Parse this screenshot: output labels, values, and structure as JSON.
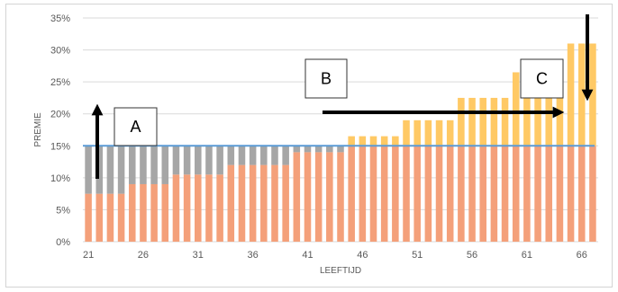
{
  "chart_data": {
    "type": "bar",
    "stacked": true,
    "xlabel": "LEEFTIJD",
    "ylabel": "PREMIE",
    "ylim": [
      0,
      35
    ],
    "y_ticks": [
      "0%",
      "5%",
      "10%",
      "15%",
      "20%",
      "25%",
      "30%",
      "35%"
    ],
    "x_tick_labels": [
      "21",
      "26",
      "31",
      "36",
      "41",
      "46",
      "51",
      "56",
      "61",
      "66"
    ],
    "grid": true,
    "categories": [
      21,
      22,
      23,
      24,
      25,
      26,
      27,
      28,
      29,
      30,
      31,
      32,
      33,
      34,
      35,
      36,
      37,
      38,
      39,
      40,
      41,
      42,
      43,
      44,
      45,
      46,
      47,
      48,
      49,
      50,
      51,
      52,
      53,
      54,
      55,
      56,
      57,
      58,
      59,
      60,
      61,
      62,
      63,
      64,
      65,
      66,
      67
    ],
    "series": [
      {
        "role": "base",
        "color": "#f4a07a",
        "values": [
          7.5,
          7.5,
          7.5,
          7.5,
          9,
          9,
          9,
          9,
          10.5,
          10.5,
          10.5,
          10.5,
          10.5,
          12,
          12,
          12,
          12,
          12,
          12,
          14,
          14,
          14,
          14,
          14,
          15,
          15,
          15,
          15,
          15,
          15,
          15,
          15,
          15,
          15,
          15,
          15,
          15,
          15,
          15,
          15,
          15,
          15,
          15,
          15,
          15,
          15,
          15
        ]
      },
      {
        "role": "gap-to-flat",
        "color": "#a6a6a6",
        "values": [
          7.5,
          7.5,
          7.5,
          7.5,
          6,
          6,
          6,
          6,
          4.5,
          4.5,
          4.5,
          4.5,
          4.5,
          3,
          3,
          3,
          3,
          3,
          3,
          1,
          1,
          1,
          1,
          1,
          0,
          0,
          0,
          0,
          0,
          0,
          0,
          0,
          0,
          0,
          0,
          0,
          0,
          0,
          0,
          0,
          0,
          0,
          0,
          0,
          0,
          0,
          0
        ]
      },
      {
        "role": "above-flat",
        "color": "#ffc965",
        "values": [
          0,
          0,
          0,
          0,
          0,
          0,
          0,
          0,
          0,
          0,
          0,
          0,
          0,
          0,
          0,
          0,
          0,
          0,
          0,
          0,
          0,
          0,
          0,
          0,
          1.5,
          1.5,
          1.5,
          1.5,
          1.5,
          4,
          4,
          4,
          4,
          4,
          7.5,
          7.5,
          7.5,
          7.5,
          7.5,
          11.5,
          7.5,
          7.5,
          7.5,
          7.5,
          16,
          16,
          16
        ]
      }
    ],
    "reference_line": {
      "value": 15,
      "color": "#5b9bd5"
    },
    "annotations": [
      {
        "label": "A",
        "arrow": "up"
      },
      {
        "label": "B",
        "arrow": "right"
      },
      {
        "label": "C",
        "arrow": "down"
      }
    ]
  }
}
